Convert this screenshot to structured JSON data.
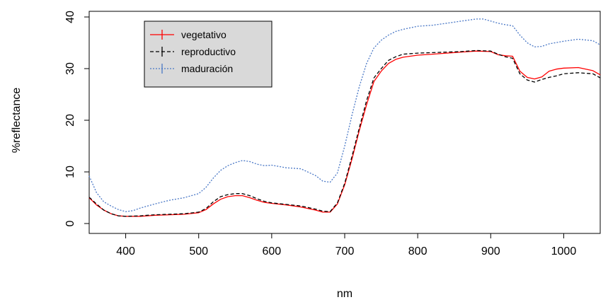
{
  "chart_data": {
    "type": "line",
    "title": "",
    "xlabel": "nm",
    "ylabel": "%reflectance",
    "xlim": [
      350,
      1050
    ],
    "ylim": [
      0,
      40
    ],
    "x_ticks": [
      400,
      500,
      600,
      700,
      800,
      900,
      1000
    ],
    "y_ticks": [
      0,
      10,
      20,
      30,
      40
    ],
    "grid": false,
    "legend_position": "top-left",
    "series": [
      {
        "name": "vegetativo",
        "color": "#ff0000",
        "dash": "solid",
        "x": [
          350,
          360,
          370,
          380,
          390,
          400,
          420,
          440,
          460,
          480,
          500,
          510,
          520,
          530,
          540,
          550,
          560,
          570,
          580,
          590,
          600,
          620,
          640,
          660,
          670,
          680,
          690,
          700,
          710,
          720,
          730,
          740,
          750,
          760,
          770,
          780,
          800,
          820,
          840,
          860,
          880,
          900,
          910,
          920,
          930,
          940,
          950,
          960,
          970,
          980,
          990,
          1000,
          1020,
          1040,
          1050
        ],
        "values": [
          5.0,
          3.6,
          2.6,
          1.9,
          1.5,
          1.4,
          1.4,
          1.6,
          1.7,
          1.8,
          2.1,
          2.7,
          3.8,
          4.7,
          5.2,
          5.4,
          5.4,
          5.0,
          4.5,
          4.1,
          3.9,
          3.6,
          3.2,
          2.6,
          2.2,
          2.2,
          3.8,
          7.5,
          12.5,
          18.0,
          23.0,
          27.5,
          29.5,
          31.0,
          31.8,
          32.2,
          32.6,
          32.8,
          33.0,
          33.2,
          33.4,
          33.3,
          32.7,
          32.5,
          32.4,
          29.5,
          28.3,
          28.0,
          28.4,
          29.5,
          29.9,
          30.1,
          30.2,
          29.6,
          28.8
        ]
      },
      {
        "name": "reproductivo",
        "color": "#000000",
        "dash": "dashed",
        "x": [
          350,
          360,
          370,
          380,
          390,
          400,
          420,
          440,
          460,
          480,
          500,
          510,
          520,
          530,
          540,
          550,
          560,
          570,
          580,
          590,
          600,
          620,
          640,
          660,
          670,
          680,
          690,
          700,
          710,
          720,
          730,
          740,
          750,
          760,
          770,
          780,
          800,
          820,
          840,
          860,
          880,
          900,
          910,
          920,
          930,
          940,
          950,
          960,
          970,
          980,
          990,
          1000,
          1020,
          1040,
          1050
        ],
        "values": [
          5.1,
          3.8,
          2.6,
          1.9,
          1.5,
          1.4,
          1.5,
          1.7,
          1.8,
          1.9,
          2.2,
          2.9,
          4.2,
          5.2,
          5.6,
          5.8,
          5.8,
          5.4,
          4.8,
          4.3,
          4.0,
          3.7,
          3.4,
          2.8,
          2.4,
          2.3,
          4.0,
          7.8,
          13.0,
          18.5,
          23.8,
          28.2,
          30.0,
          31.6,
          32.3,
          32.8,
          33.0,
          33.1,
          33.2,
          33.3,
          33.5,
          33.4,
          32.8,
          32.3,
          32.0,
          29.0,
          27.8,
          27.4,
          27.9,
          28.3,
          28.6,
          29.0,
          29.2,
          29.0,
          28.2
        ]
      },
      {
        "name": "maduración",
        "color": "#4a78c6",
        "dash": "dotted",
        "x": [
          350,
          360,
          370,
          380,
          390,
          400,
          410,
          420,
          440,
          460,
          480,
          500,
          510,
          520,
          530,
          540,
          550,
          560,
          570,
          580,
          590,
          600,
          620,
          640,
          660,
          670,
          680,
          690,
          700,
          710,
          720,
          730,
          740,
          750,
          760,
          770,
          780,
          800,
          820,
          840,
          860,
          880,
          890,
          900,
          910,
          920,
          930,
          940,
          950,
          960,
          970,
          980,
          1000,
          1020,
          1040,
          1050
        ],
        "values": [
          9.2,
          6.0,
          4.2,
          3.4,
          2.7,
          2.3,
          2.5,
          3.0,
          3.8,
          4.5,
          5.0,
          5.8,
          7.0,
          8.8,
          10.3,
          11.2,
          11.8,
          12.2,
          12.0,
          11.5,
          11.2,
          11.3,
          10.8,
          10.6,
          9.3,
          8.2,
          8.0,
          9.8,
          15.0,
          21.0,
          26.5,
          31.0,
          34.0,
          35.5,
          36.5,
          37.2,
          37.6,
          38.2,
          38.4,
          38.8,
          39.2,
          39.6,
          39.6,
          39.2,
          38.8,
          38.5,
          38.3,
          36.5,
          35.0,
          34.2,
          34.3,
          34.8,
          35.3,
          35.7,
          35.4,
          34.6
        ]
      }
    ]
  }
}
